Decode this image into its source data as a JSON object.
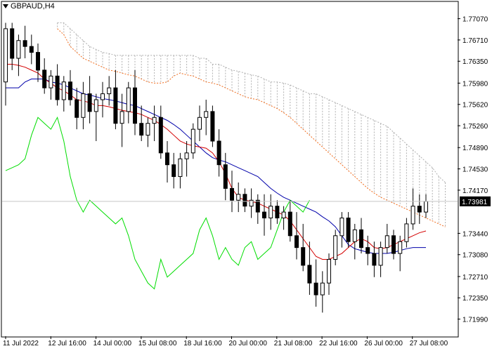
{
  "header": {
    "symbol": "GBPAUD,H4"
  },
  "colors": {
    "background": "#ffffff",
    "grid": "#c8c8c8",
    "bull_fill": "#ffffff",
    "bear_fill": "#000000",
    "candle_edge": "#000000",
    "tenkan": "#d40000",
    "kijun": "#0000aa",
    "chikou": "#00dd00",
    "senkou_a": "#f06a1a",
    "senkou_b": "#b0b0b0",
    "price_tag_bg": "#000000",
    "price_tag_text": "#ffffff"
  },
  "chart_data": {
    "type": "candlestick",
    "title": "GBPAUD,H4",
    "current_price": "1.73981",
    "ylim": [
      1.717,
      1.7735
    ],
    "y_ticks": [
      "1.77070",
      "1.76710",
      "1.76350",
      "1.75980",
      "1.75620",
      "1.75260",
      "1.74890",
      "1.74530",
      "1.74170",
      "1.73981",
      "1.73440",
      "1.73080",
      "1.72710",
      "1.72350",
      "1.71990"
    ],
    "x_ticks": [
      "11 Jul 2022",
      "12 Jul 16:00",
      "14 Jul 00:00",
      "15 Jul 08:00",
      "18 Jul 16:00",
      "20 Jul 00:00",
      "21 Jul 08:00",
      "22 Jul 16:00",
      "26 Jul 00:00",
      "27 Jul 08:00"
    ],
    "ohlc": [
      [
        1.76,
        1.77,
        1.756,
        1.769
      ],
      [
        1.769,
        1.77,
        1.762,
        1.764
      ],
      [
        1.764,
        1.768,
        1.761,
        1.767
      ],
      [
        1.767,
        1.7695,
        1.764,
        1.766
      ],
      [
        1.766,
        1.768,
        1.763,
        1.765
      ],
      [
        1.765,
        1.7665,
        1.76,
        1.762
      ],
      [
        1.762,
        1.764,
        1.758,
        1.759
      ],
      [
        1.759,
        1.762,
        1.757,
        1.761
      ],
      [
        1.761,
        1.763,
        1.756,
        1.757
      ],
      [
        1.757,
        1.761,
        1.755,
        1.76
      ],
      [
        1.76,
        1.762,
        1.756,
        1.757
      ],
      [
        1.757,
        1.759,
        1.752,
        1.754
      ],
      [
        1.754,
        1.76,
        1.752,
        1.758
      ],
      [
        1.758,
        1.761,
        1.753,
        1.755
      ],
      [
        1.755,
        1.758,
        1.75,
        1.757
      ],
      [
        1.757,
        1.76,
        1.754,
        1.758
      ],
      [
        1.758,
        1.761,
        1.756,
        1.759
      ],
      [
        1.759,
        1.762,
        1.752,
        1.753
      ],
      [
        1.753,
        1.758,
        1.749,
        1.755
      ],
      [
        1.755,
        1.76,
        1.753,
        1.759
      ],
      [
        1.759,
        1.762,
        1.751,
        1.753
      ],
      [
        1.753,
        1.756,
        1.75,
        1.751
      ],
      [
        1.751,
        1.754,
        1.749,
        1.753
      ],
      [
        1.753,
        1.756,
        1.75,
        1.754
      ],
      [
        1.754,
        1.756,
        1.747,
        1.748
      ],
      [
        1.748,
        1.75,
        1.743,
        1.746
      ],
      [
        1.746,
        1.748,
        1.742,
        1.744
      ],
      [
        1.744,
        1.748,
        1.742,
        1.747
      ],
      [
        1.747,
        1.75,
        1.744,
        1.748
      ],
      [
        1.748,
        1.753,
        1.747,
        1.752
      ],
      [
        1.752,
        1.756,
        1.75,
        1.754
      ],
      [
        1.754,
        1.757,
        1.751,
        1.755
      ],
      [
        1.755,
        1.756,
        1.749,
        1.75
      ],
      [
        1.75,
        1.752,
        1.744,
        1.746
      ],
      [
        1.746,
        1.748,
        1.74,
        1.742
      ],
      [
        1.742,
        1.745,
        1.738,
        1.74
      ],
      [
        1.74,
        1.743,
        1.738,
        1.741
      ],
      [
        1.741,
        1.742,
        1.738,
        1.739
      ],
      [
        1.739,
        1.742,
        1.737,
        1.74
      ],
      [
        1.74,
        1.741,
        1.736,
        1.738
      ],
      [
        1.738,
        1.741,
        1.734,
        1.737
      ],
      [
        1.737,
        1.741,
        1.735,
        1.739
      ],
      [
        1.739,
        1.74,
        1.736,
        1.737
      ],
      [
        1.737,
        1.739,
        1.735,
        1.738
      ],
      [
        1.738,
        1.74,
        1.733,
        1.734
      ],
      [
        1.734,
        1.738,
        1.73,
        1.732
      ],
      [
        1.732,
        1.736,
        1.728,
        1.729
      ],
      [
        1.729,
        1.733,
        1.724,
        1.726
      ],
      [
        1.726,
        1.73,
        1.722,
        1.724
      ],
      [
        1.724,
        1.728,
        1.721,
        1.726
      ],
      [
        1.726,
        1.731,
        1.724,
        1.73
      ],
      [
        1.73,
        1.735,
        1.729,
        1.734
      ],
      [
        1.734,
        1.738,
        1.732,
        1.737
      ],
      [
        1.737,
        1.738,
        1.732,
        1.733
      ],
      [
        1.733,
        1.736,
        1.73,
        1.735
      ],
      [
        1.735,
        1.737,
        1.731,
        1.732
      ],
      [
        1.732,
        1.734,
        1.729,
        1.731
      ],
      [
        1.731,
        1.733,
        1.727,
        1.729
      ],
      [
        1.729,
        1.733,
        1.727,
        1.732
      ],
      [
        1.732,
        1.736,
        1.731,
        1.734
      ],
      [
        1.734,
        1.735,
        1.73,
        1.731
      ],
      [
        1.731,
        1.734,
        1.728,
        1.733
      ],
      [
        1.733,
        1.737,
        1.732,
        1.736
      ],
      [
        1.736,
        1.742,
        1.735,
        1.739
      ],
      [
        1.739,
        1.741,
        1.736,
        1.738
      ],
      [
        1.738,
        1.741,
        1.737,
        1.7398
      ]
    ],
    "tenkan": [
      1.763,
      1.763,
      1.7628,
      1.7625,
      1.762,
      1.7615,
      1.7605,
      1.7598,
      1.759,
      1.7585,
      1.7578,
      1.757,
      1.7568,
      1.7565,
      1.756,
      1.756,
      1.7558,
      1.7555,
      1.7552,
      1.755,
      1.7548,
      1.7545,
      1.754,
      1.7535,
      1.7528,
      1.752,
      1.751,
      1.75,
      1.7495,
      1.7492,
      1.749,
      1.7488,
      1.748,
      1.7465,
      1.7445,
      1.742,
      1.7405,
      1.74,
      1.7398,
      1.7395,
      1.739,
      1.7385,
      1.738,
      1.7375,
      1.7365,
      1.735,
      1.7335,
      1.732,
      1.7305,
      1.73,
      1.73,
      1.7305,
      1.731,
      1.732,
      1.733,
      1.7335,
      1.733,
      1.732,
      1.7318,
      1.732,
      1.7325,
      1.733,
      1.7335,
      1.734,
      1.7345,
      1.7348
    ],
    "kijun": [
      1.759,
      1.759,
      1.759,
      1.76,
      1.7605,
      1.7605,
      1.7605,
      1.76,
      1.7598,
      1.7595,
      1.759,
      1.7585,
      1.758,
      1.7578,
      1.7575,
      1.7572,
      1.757,
      1.7568,
      1.7565,
      1.7562,
      1.756,
      1.7555,
      1.755,
      1.7545,
      1.754,
      1.7535,
      1.7528,
      1.752,
      1.751,
      1.75,
      1.749,
      1.748,
      1.7472,
      1.7468,
      1.7465,
      1.746,
      1.7455,
      1.745,
      1.7445,
      1.744,
      1.743,
      1.742,
      1.7412,
      1.7405,
      1.74,
      1.7395,
      1.739,
      1.7385,
      1.738,
      1.7372,
      1.7365,
      1.7355,
      1.734,
      1.7325,
      1.7318,
      1.7315,
      1.7312,
      1.731,
      1.731,
      1.731,
      1.7312,
      1.7315,
      1.7318,
      1.732,
      1.732,
      1.732
    ],
    "chikou": [
      1.745,
      1.7455,
      1.746,
      1.747,
      1.751,
      1.754,
      1.753,
      1.752,
      1.754,
      1.75,
      1.744,
      1.74,
      1.738,
      1.74,
      1.739,
      1.738,
      1.737,
      1.736,
      1.737,
      1.734,
      1.73,
      1.728,
      1.726,
      1.725,
      1.73,
      1.727,
      1.728,
      1.729,
      1.73,
      1.731,
      1.735,
      1.737,
      1.734,
      1.73,
      1.732,
      1.73,
      1.729,
      1.732,
      1.733,
      1.73,
      1.731,
      1.732,
      1.735,
      1.738,
      1.74,
      1.739,
      1.738,
      1.74
    ],
    "senkou_a": [
      1.769,
      1.768,
      1.766,
      1.765,
      1.764,
      1.7635,
      1.763,
      1.7625,
      1.762,
      1.7618,
      1.7615,
      1.7612,
      1.761,
      1.7605,
      1.76,
      1.7598,
      1.7598,
      1.76,
      1.761,
      1.7615,
      1.7612,
      1.761,
      1.7605,
      1.76,
      1.7598,
      1.7595,
      1.759,
      1.7585,
      1.758,
      1.7575,
      1.7572,
      1.757,
      1.7565,
      1.756,
      1.7555,
      1.7548,
      1.754,
      1.753,
      1.752,
      1.751,
      1.75,
      1.749,
      1.748,
      1.747,
      1.746,
      1.745,
      1.744,
      1.743,
      1.742,
      1.7412,
      1.7405,
      1.74,
      1.7395,
      1.739,
      1.7385,
      1.738,
      1.7375,
      1.737,
      1.7365,
      1.736,
      1.7355
    ],
    "senkou_b": [
      1.77,
      1.77,
      1.769,
      1.768,
      1.767,
      1.766,
      1.7655,
      1.765,
      1.7648,
      1.7645,
      1.7645,
      1.7645,
      1.7645,
      1.7645,
      1.7645,
      1.7645,
      1.7645,
      1.7645,
      1.7645,
      1.7645,
      1.7645,
      1.7645,
      1.764,
      1.764,
      1.763,
      1.763,
      1.7625,
      1.762,
      1.7618,
      1.7615,
      1.7612,
      1.761,
      1.7605,
      1.76,
      1.76,
      1.7598,
      1.7595,
      1.759,
      1.7585,
      1.758,
      1.758,
      1.7575,
      1.757,
      1.7565,
      1.756,
      1.7555,
      1.755,
      1.7545,
      1.754,
      1.7535,
      1.753,
      1.7525,
      1.7515,
      1.7505,
      1.7495,
      1.7485,
      1.7475,
      1.7465,
      1.7455,
      1.744,
      1.743
    ],
    "grid": true
  }
}
